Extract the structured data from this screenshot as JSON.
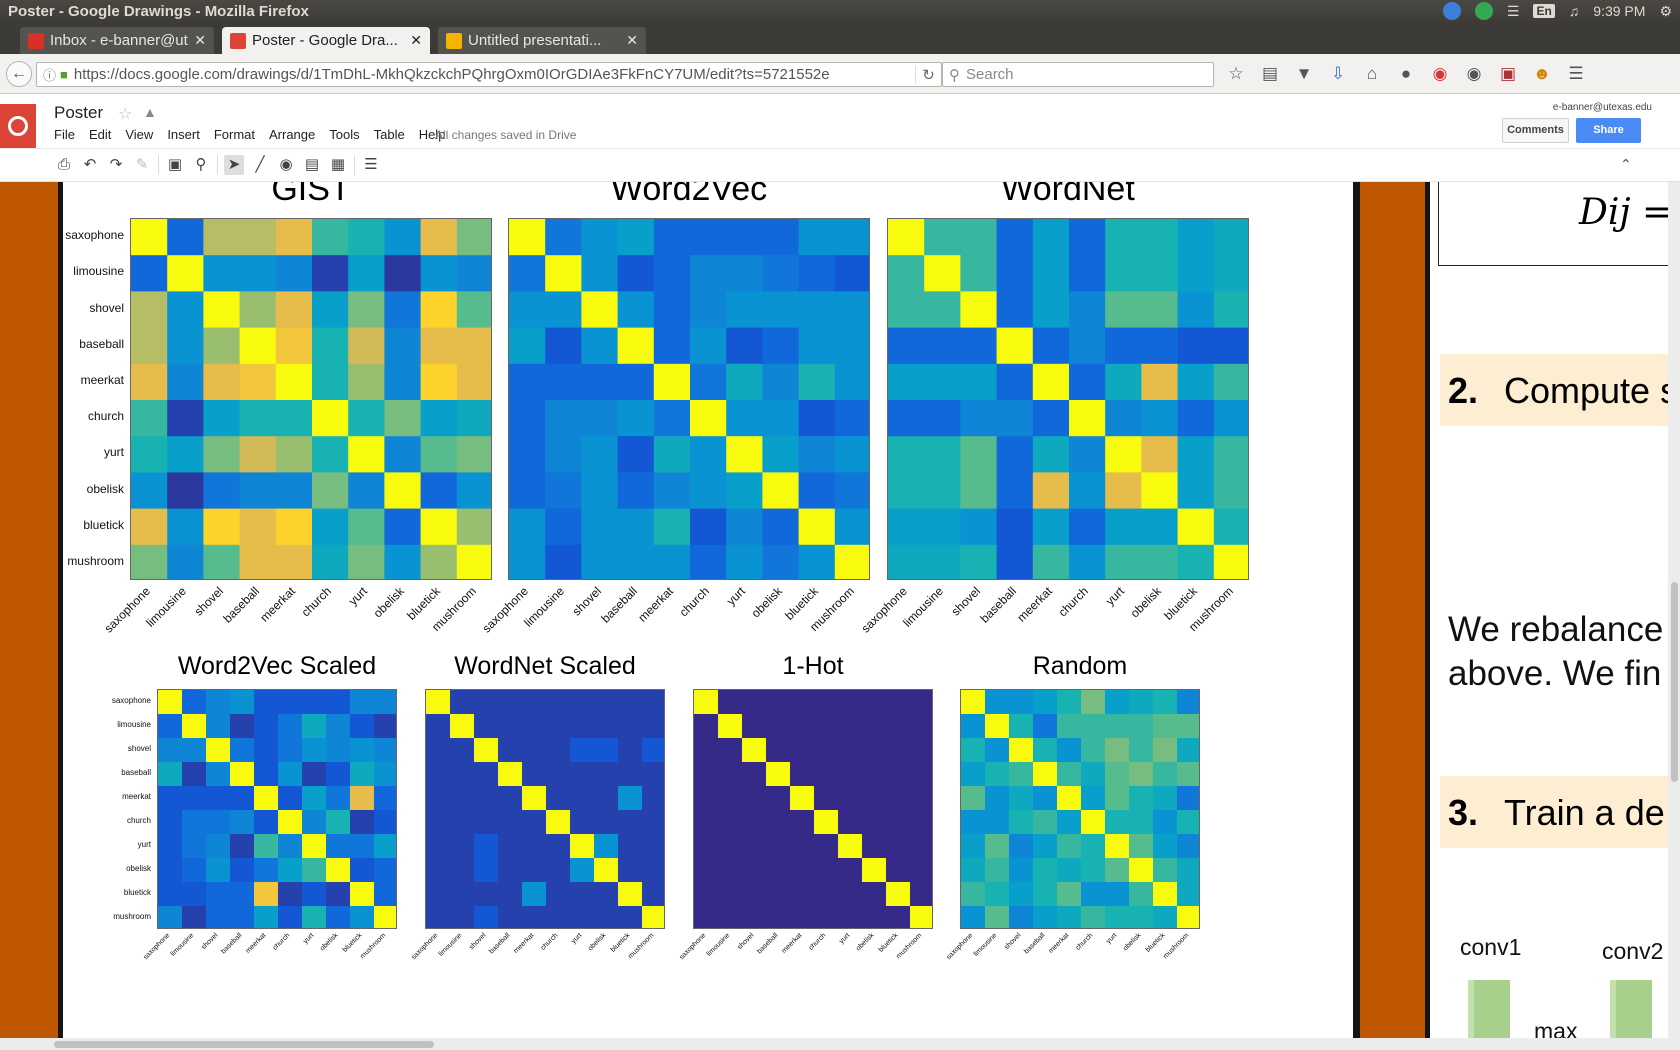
{
  "window": {
    "title": "Poster - Google Drawings - Mozilla Firefox"
  },
  "tray": {
    "lang": "En",
    "time": "9:39 PM"
  },
  "tabs": [
    {
      "label": "Inbox - e-banner@ut...",
      "color": "#d93025"
    },
    {
      "label": "Poster - Google Dra...",
      "color": "#db4437"
    },
    {
      "label": "Untitled presentati...",
      "color": "#f4b400"
    }
  ],
  "nav": {
    "url": "https://docs.google.com/drawings/d/1TmDhL-MkhQkzckchPQhrgOxm0IOrGDIAe3FkFnCY7UM/edit?ts=5721552e",
    "search_placeholder": "Search"
  },
  "docs": {
    "title": "Poster",
    "menu": [
      "File",
      "Edit",
      "View",
      "Insert",
      "Format",
      "Arrange",
      "Tools",
      "Table",
      "Help"
    ],
    "saved": "All changes saved in Drive",
    "account": "e-banner@utexas.edu",
    "comments": "Comments",
    "share": "Share"
  },
  "chart_data": [
    {
      "type": "heatmap",
      "title": "GIST",
      "categories": [
        "saxophone",
        "limousine",
        "shovel",
        "baseball",
        "meerkat",
        "church",
        "yurt",
        "obelisk",
        "bluetick",
        "mushroom"
      ],
      "values": [
        [
          1.0,
          0.15,
          0.7,
          0.7,
          0.8,
          0.5,
          0.45,
          0.3,
          0.8,
          0.6
        ],
        [
          0.15,
          1.0,
          0.3,
          0.3,
          0.25,
          0.05,
          0.35,
          0.03,
          0.3,
          0.25
        ],
        [
          0.7,
          0.3,
          1.0,
          0.65,
          0.8,
          0.35,
          0.6,
          0.2,
          0.9,
          0.55
        ],
        [
          0.7,
          0.3,
          0.65,
          1.0,
          0.85,
          0.45,
          0.75,
          0.25,
          0.8,
          0.8
        ],
        [
          0.8,
          0.25,
          0.8,
          0.85,
          1.0,
          0.45,
          0.65,
          0.25,
          0.9,
          0.8
        ],
        [
          0.5,
          0.05,
          0.35,
          0.45,
          0.45,
          1.0,
          0.45,
          0.6,
          0.35,
          0.4
        ],
        [
          0.45,
          0.35,
          0.6,
          0.75,
          0.65,
          0.45,
          1.0,
          0.25,
          0.55,
          0.6
        ],
        [
          0.3,
          0.03,
          0.2,
          0.25,
          0.25,
          0.6,
          0.25,
          1.0,
          0.15,
          0.3
        ],
        [
          0.8,
          0.3,
          0.9,
          0.8,
          0.9,
          0.35,
          0.55,
          0.15,
          1.0,
          0.65
        ],
        [
          0.6,
          0.25,
          0.55,
          0.8,
          0.8,
          0.4,
          0.6,
          0.3,
          0.65,
          1.0
        ]
      ]
    },
    {
      "type": "heatmap",
      "title": "Word2Vec",
      "categories": [
        "saxophone",
        "limousine",
        "shovel",
        "baseball",
        "meerkat",
        "church",
        "yurt",
        "obelisk",
        "bluetick",
        "mushroom"
      ],
      "values": [
        [
          1.0,
          0.2,
          0.3,
          0.35,
          0.15,
          0.15,
          0.15,
          0.15,
          0.3,
          0.3
        ],
        [
          0.2,
          1.0,
          0.3,
          0.1,
          0.15,
          0.25,
          0.25,
          0.2,
          0.15,
          0.1
        ],
        [
          0.3,
          0.3,
          1.0,
          0.3,
          0.15,
          0.25,
          0.3,
          0.3,
          0.3,
          0.3
        ],
        [
          0.35,
          0.1,
          0.3,
          1.0,
          0.15,
          0.3,
          0.1,
          0.15,
          0.3,
          0.3
        ],
        [
          0.15,
          0.15,
          0.15,
          0.15,
          1.0,
          0.2,
          0.4,
          0.25,
          0.45,
          0.3
        ],
        [
          0.15,
          0.25,
          0.25,
          0.3,
          0.2,
          1.0,
          0.3,
          0.3,
          0.1,
          0.15
        ],
        [
          0.15,
          0.25,
          0.3,
          0.1,
          0.4,
          0.3,
          1.0,
          0.35,
          0.25,
          0.3
        ],
        [
          0.15,
          0.2,
          0.3,
          0.15,
          0.25,
          0.3,
          0.35,
          1.0,
          0.15,
          0.2
        ],
        [
          0.3,
          0.15,
          0.3,
          0.3,
          0.45,
          0.1,
          0.25,
          0.15,
          1.0,
          0.3
        ],
        [
          0.3,
          0.1,
          0.3,
          0.3,
          0.3,
          0.15,
          0.3,
          0.2,
          0.3,
          1.0
        ]
      ]
    },
    {
      "type": "heatmap",
      "title": "WordNet",
      "categories": [
        "saxophone",
        "limousine",
        "shovel",
        "baseball",
        "meerkat",
        "church",
        "yurt",
        "obelisk",
        "bluetick",
        "mushroom"
      ],
      "values": [
        [
          1.0,
          0.5,
          0.5,
          0.15,
          0.35,
          0.15,
          0.45,
          0.45,
          0.35,
          0.4
        ],
        [
          0.5,
          1.0,
          0.5,
          0.15,
          0.35,
          0.15,
          0.45,
          0.45,
          0.35,
          0.4
        ],
        [
          0.5,
          0.5,
          1.0,
          0.15,
          0.35,
          0.25,
          0.55,
          0.55,
          0.3,
          0.45
        ],
        [
          0.15,
          0.15,
          0.15,
          1.0,
          0.15,
          0.25,
          0.15,
          0.15,
          0.1,
          0.1
        ],
        [
          0.35,
          0.35,
          0.35,
          0.15,
          1.0,
          0.15,
          0.4,
          0.8,
          0.35,
          0.5
        ],
        [
          0.15,
          0.15,
          0.25,
          0.25,
          0.15,
          1.0,
          0.25,
          0.3,
          0.15,
          0.3
        ],
        [
          0.45,
          0.45,
          0.55,
          0.15,
          0.4,
          0.25,
          1.0,
          0.8,
          0.35,
          0.5
        ],
        [
          0.45,
          0.45,
          0.55,
          0.15,
          0.8,
          0.3,
          0.8,
          1.0,
          0.35,
          0.5
        ],
        [
          0.35,
          0.35,
          0.3,
          0.1,
          0.35,
          0.15,
          0.35,
          0.35,
          1.0,
          0.45
        ],
        [
          0.4,
          0.4,
          0.45,
          0.1,
          0.5,
          0.3,
          0.5,
          0.5,
          0.45,
          1.0
        ]
      ]
    },
    {
      "type": "heatmap",
      "title": "Word2Vec Scaled",
      "categories": [
        "saxophone",
        "limousine",
        "shovel",
        "baseball",
        "meerkat",
        "church",
        "yurt",
        "obelisk",
        "bluetick",
        "mushroom"
      ],
      "values": [
        [
          1.0,
          0.15,
          0.25,
          0.3,
          0.1,
          0.1,
          0.1,
          0.1,
          0.25,
          0.25
        ],
        [
          0.15,
          1.0,
          0.25,
          0.05,
          0.1,
          0.2,
          0.4,
          0.25,
          0.1,
          0.05
        ],
        [
          0.25,
          0.25,
          1.0,
          0.2,
          0.1,
          0.2,
          0.3,
          0.25,
          0.3,
          0.25
        ],
        [
          0.4,
          0.05,
          0.25,
          1.0,
          0.1,
          0.3,
          0.05,
          0.1,
          0.4,
          0.3
        ],
        [
          0.1,
          0.1,
          0.1,
          0.1,
          1.0,
          0.1,
          0.35,
          0.2,
          0.8,
          0.15
        ],
        [
          0.1,
          0.2,
          0.2,
          0.25,
          0.1,
          1.0,
          0.25,
          0.45,
          0.05,
          0.1
        ],
        [
          0.1,
          0.2,
          0.25,
          0.05,
          0.5,
          0.25,
          1.0,
          0.2,
          0.2,
          0.35
        ],
        [
          0.1,
          0.15,
          0.3,
          0.1,
          0.2,
          0.35,
          0.5,
          1.0,
          0.1,
          0.15
        ],
        [
          0.1,
          0.1,
          0.15,
          0.15,
          0.85,
          0.05,
          0.1,
          0.05,
          1.0,
          0.15
        ],
        [
          0.25,
          0.05,
          0.15,
          0.15,
          0.35,
          0.1,
          0.45,
          0.15,
          0.3,
          1.0
        ]
      ]
    },
    {
      "type": "heatmap",
      "title": "WordNet Scaled",
      "categories": [
        "saxophone",
        "limousine",
        "shovel",
        "baseball",
        "meerkat",
        "church",
        "yurt",
        "obelisk",
        "bluetick",
        "mushroom"
      ],
      "values": [
        [
          1.0,
          0.05,
          0.05,
          0.05,
          0.05,
          0.05,
          0.05,
          0.05,
          0.05,
          0.05
        ],
        [
          0.05,
          1.0,
          0.05,
          0.05,
          0.05,
          0.05,
          0.05,
          0.05,
          0.05,
          0.05
        ],
        [
          0.05,
          0.05,
          1.0,
          0.05,
          0.05,
          0.05,
          0.1,
          0.1,
          0.05,
          0.1
        ],
        [
          0.05,
          0.05,
          0.05,
          1.0,
          0.05,
          0.05,
          0.05,
          0.05,
          0.05,
          0.05
        ],
        [
          0.05,
          0.05,
          0.05,
          0.05,
          1.0,
          0.05,
          0.05,
          0.05,
          0.3,
          0.05
        ],
        [
          0.05,
          0.05,
          0.05,
          0.05,
          0.05,
          1.0,
          0.05,
          0.05,
          0.05,
          0.05
        ],
        [
          0.05,
          0.05,
          0.1,
          0.05,
          0.05,
          0.05,
          1.0,
          0.3,
          0.05,
          0.05
        ],
        [
          0.05,
          0.05,
          0.1,
          0.05,
          0.05,
          0.05,
          0.3,
          1.0,
          0.05,
          0.05
        ],
        [
          0.05,
          0.05,
          0.05,
          0.05,
          0.3,
          0.05,
          0.05,
          0.05,
          1.0,
          0.05
        ],
        [
          0.05,
          0.05,
          0.1,
          0.05,
          0.05,
          0.05,
          0.05,
          0.05,
          0.05,
          1.0
        ]
      ]
    },
    {
      "type": "heatmap",
      "title": "1-Hot",
      "categories": [
        "saxophone",
        "limousine",
        "shovel",
        "baseball",
        "meerkat",
        "church",
        "yurt",
        "obelisk",
        "bluetick",
        "mushroom"
      ],
      "values": [
        [
          1,
          0,
          0,
          0,
          0,
          0,
          0,
          0,
          0,
          0
        ],
        [
          0,
          1,
          0,
          0,
          0,
          0,
          0,
          0,
          0,
          0
        ],
        [
          0,
          0,
          1,
          0,
          0,
          0,
          0,
          0,
          0,
          0
        ],
        [
          0,
          0,
          0,
          1,
          0,
          0,
          0,
          0,
          0,
          0
        ],
        [
          0,
          0,
          0,
          0,
          1,
          0,
          0,
          0,
          0,
          0
        ],
        [
          0,
          0,
          0,
          0,
          0,
          1,
          0,
          0,
          0,
          0
        ],
        [
          0,
          0,
          0,
          0,
          0,
          0,
          1,
          0,
          0,
          0
        ],
        [
          0,
          0,
          0,
          0,
          0,
          0,
          0,
          1,
          0,
          0
        ],
        [
          0,
          0,
          0,
          0,
          0,
          0,
          0,
          0,
          1,
          0
        ],
        [
          0,
          0,
          0,
          0,
          0,
          0,
          0,
          0,
          0,
          1
        ]
      ]
    },
    {
      "type": "heatmap",
      "title": "Random",
      "categories": [
        "saxophone",
        "limousine",
        "shovel",
        "baseball",
        "meerkat",
        "church",
        "yurt",
        "obelisk",
        "bluetick",
        "mushroom"
      ],
      "values": [
        [
          1.0,
          0.3,
          0.3,
          0.35,
          0.45,
          0.6,
          0.35,
          0.4,
          0.45,
          0.25
        ],
        [
          0.3,
          1.0,
          0.45,
          0.2,
          0.5,
          0.5,
          0.5,
          0.5,
          0.55,
          0.55
        ],
        [
          0.45,
          0.3,
          1.0,
          0.45,
          0.3,
          0.5,
          0.6,
          0.5,
          0.6,
          0.4
        ],
        [
          0.35,
          0.45,
          0.5,
          1.0,
          0.5,
          0.4,
          0.55,
          0.6,
          0.5,
          0.55
        ],
        [
          0.55,
          0.3,
          0.4,
          0.3,
          1.0,
          0.35,
          0.55,
          0.45,
          0.4,
          0.2
        ],
        [
          0.3,
          0.3,
          0.45,
          0.5,
          0.35,
          1.0,
          0.45,
          0.45,
          0.3,
          0.45
        ],
        [
          0.35,
          0.55,
          0.25,
          0.35,
          0.5,
          0.45,
          1.0,
          0.55,
          0.35,
          0.25
        ],
        [
          0.4,
          0.5,
          0.3,
          0.45,
          0.4,
          0.45,
          0.55,
          1.0,
          0.5,
          0.4
        ],
        [
          0.5,
          0.45,
          0.35,
          0.45,
          0.55,
          0.3,
          0.3,
          0.5,
          1.0,
          0.4
        ],
        [
          0.3,
          0.55,
          0.25,
          0.35,
          0.4,
          0.5,
          0.45,
          0.45,
          0.4,
          1.0
        ]
      ]
    }
  ],
  "page2": {
    "formula": "Dij =",
    "step2_num": "2.",
    "step2_text": "Compute s",
    "para_line1": "We rebalance",
    "para_line2": "above. We fin",
    "step3_num": "3.",
    "step3_text": "Train a de",
    "conv1": "conv1",
    "conv2": "conv2",
    "max": "max"
  },
  "colors": {
    "brand_orange": "#bf5700",
    "step_bg": "#fdedd3",
    "docs_red": "#db4437",
    "share_blue": "#4a8af4"
  }
}
